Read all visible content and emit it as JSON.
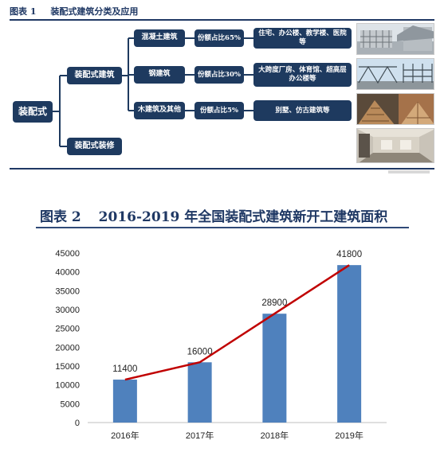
{
  "figure1": {
    "label": "图表 1",
    "title": "装配式建筑分类及应用",
    "root": "装配式",
    "branches": [
      {
        "label": "装配式建筑",
        "children": [
          {
            "type": "混凝土建筑",
            "share": "份额占比65%",
            "uses": "住宅、办公楼、教学楼、医院等"
          },
          {
            "type": "钢建筑",
            "share": "份额占比30%",
            "uses": "大跨度厂房、体育馆、超高层办公楼等"
          },
          {
            "type": "木建筑及其他",
            "share": "份额占比5%",
            "uses": "别墅、仿古建筑等"
          }
        ]
      },
      {
        "label": "装配式装修",
        "children": []
      }
    ],
    "colors": {
      "box": "#1e3a5f",
      "connector": "#1e3a5f"
    }
  },
  "figure2": {
    "label": "图表 2",
    "title": "2016-2019 年全国装配式建筑新开工建筑面积"
  },
  "chart_data": {
    "type": "bar",
    "categories": [
      "2016年",
      "2017年",
      "2018年",
      "2019年"
    ],
    "values": [
      11400,
      16000,
      28900,
      41800
    ],
    "value_labels": [
      "11400",
      "16000",
      "28900",
      "41800"
    ],
    "overlay_line": {
      "values": [
        11400,
        16000,
        28900,
        41800
      ],
      "color": "#c00000"
    },
    "ylim": [
      0,
      45000
    ],
    "yticks": [
      0,
      5000,
      10000,
      15000,
      20000,
      25000,
      30000,
      35000,
      40000,
      45000
    ],
    "ytick_labels": [
      "0",
      "5000",
      "10000",
      "15000",
      "20000",
      "25000",
      "30000",
      "35000",
      "40000",
      "45000"
    ],
    "grid": false,
    "legend": "none",
    "colors": {
      "bar": "#4f81bd",
      "line": "#c00000"
    }
  }
}
